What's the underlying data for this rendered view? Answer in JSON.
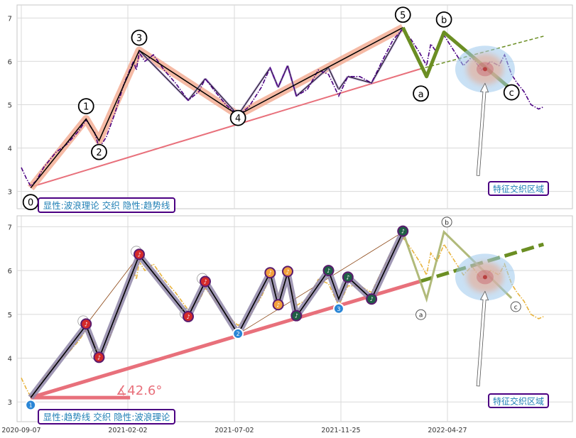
{
  "chart_data": [
    {
      "type": "line",
      "panel": "top",
      "ylim": [
        2.6,
        7.3
      ],
      "y_ticks": [
        "3",
        "4",
        "5",
        "6",
        "7"
      ],
      "x_ticks": [
        "2020-09-07",
        "2021-02-02",
        "2021-07-02",
        "2021-11-25",
        "2022-04-27"
      ],
      "grid": true,
      "price_series": {
        "color": "#4b0082",
        "style": "dash-dot",
        "points": [
          [
            "2020-09-07",
            3.55
          ],
          [
            "2020-09-14",
            3.3
          ],
          [
            "2020-09-20",
            3.12
          ],
          [
            "2020-09-28",
            3.25
          ],
          [
            "2020-10-08",
            3.55
          ],
          [
            "2020-10-25",
            3.9
          ],
          [
            "2020-11-10",
            4.1
          ],
          [
            "2020-11-26",
            4.4
          ],
          [
            "2020-12-06",
            4.65
          ],
          [
            "2020-12-18",
            4.35
          ],
          [
            "2020-12-24",
            4.0
          ],
          [
            "2021-01-03",
            4.25
          ],
          [
            "2021-01-15",
            4.8
          ],
          [
            "2021-01-28",
            5.5
          ],
          [
            "2021-02-10",
            6.0
          ],
          [
            "2021-02-14",
            5.8
          ],
          [
            "2021-02-18",
            6.2
          ],
          [
            "2021-02-26",
            6.0
          ],
          [
            "2021-03-10",
            6.15
          ],
          [
            "2021-03-25",
            5.8
          ],
          [
            "2021-04-10",
            5.5
          ],
          [
            "2021-04-28",
            5.1
          ],
          [
            "2021-05-13",
            5.3
          ],
          [
            "2021-05-22",
            5.6
          ],
          [
            "2021-06-05",
            5.3
          ],
          [
            "2021-06-20",
            5.0
          ],
          [
            "2021-07-07",
            4.75
          ],
          [
            "2021-07-22",
            4.95
          ],
          [
            "2021-08-08",
            5.4
          ],
          [
            "2021-08-20",
            5.85
          ],
          [
            "2021-08-31",
            5.4
          ],
          [
            "2021-09-13",
            5.9
          ],
          [
            "2021-09-25",
            5.2
          ],
          [
            "2021-10-10",
            5.35
          ],
          [
            "2021-10-25",
            5.8
          ],
          [
            "2021-11-08",
            5.7
          ],
          [
            "2021-11-22",
            5.2
          ],
          [
            "2021-12-05",
            5.65
          ],
          [
            "2021-12-22",
            5.65
          ],
          [
            "2022-01-08",
            5.5
          ],
          [
            "2022-01-23",
            6.0
          ],
          [
            "2022-02-08",
            6.5
          ],
          [
            "2022-02-22",
            6.75
          ],
          [
            "2022-03-06",
            6.5
          ],
          [
            "2022-03-18",
            6.2
          ],
          [
            "2022-03-28",
            5.9
          ],
          [
            "2022-04-03",
            6.4
          ],
          [
            "2022-04-12",
            6.2
          ],
          [
            "2022-04-22",
            6.6
          ],
          [
            "2022-05-08",
            6.2
          ],
          [
            "2022-05-20",
            5.9
          ],
          [
            "2022-06-01",
            6.1
          ],
          [
            "2022-06-15",
            5.8
          ],
          [
            "2022-06-28",
            6.0
          ],
          [
            "2022-07-10",
            5.9
          ],
          [
            "2022-07-18",
            6.15
          ],
          [
            "2022-07-28",
            5.7
          ],
          [
            "2022-08-05",
            5.5
          ],
          [
            "2022-08-15",
            5.3
          ],
          [
            "2022-08-25",
            5.0
          ],
          [
            "2022-09-05",
            4.9
          ],
          [
            "2022-09-12",
            4.95
          ]
        ]
      },
      "wave_points": [
        {
          "label": "0",
          "x": "2020-09-20",
          "y": 3.08
        },
        {
          "label": "1",
          "x": "2020-12-06",
          "y": 4.67
        },
        {
          "label": "2",
          "x": "2020-12-24",
          "y": 4.17
        },
        {
          "label": "3",
          "x": "2021-02-18",
          "y": 6.25
        },
        {
          "label": "4",
          "x": "2021-07-07",
          "y": 4.76
        },
        {
          "label": "5",
          "x": "2022-02-22",
          "y": 6.78
        }
      ],
      "zigzag_lines": [
        {
          "from": "2021-02-18",
          "to": "2021-04-28",
          "y1": 6.25,
          "y2": 5.1
        },
        {
          "from": "2021-04-28",
          "to": "2021-05-22",
          "y1": 5.1,
          "y2": 5.6
        },
        {
          "from": "2021-05-22",
          "to": "2021-07-07",
          "y1": 5.6,
          "y2": 4.76
        },
        {
          "from": "2021-07-07",
          "to": "2021-08-20",
          "y1": 4.76,
          "y2": 5.85
        },
        {
          "from": "2021-08-20",
          "to": "2021-08-31",
          "y1": 5.85,
          "y2": 5.4
        },
        {
          "from": "2021-08-31",
          "to": "2021-09-13",
          "y1": 5.4,
          "y2": 5.9
        },
        {
          "from": "2021-09-13",
          "to": "2021-09-25",
          "y1": 5.9,
          "y2": 5.2
        },
        {
          "from": "2021-09-25",
          "to": "2021-11-08",
          "y1": 5.2,
          "y2": 5.85
        },
        {
          "from": "2021-11-08",
          "to": "2021-11-22",
          "y1": 5.85,
          "y2": 5.35
        },
        {
          "from": "2021-11-22",
          "to": "2021-12-05",
          "y1": 5.35,
          "y2": 5.65
        },
        {
          "from": "2021-12-05",
          "to": "2022-01-08",
          "y1": 5.65,
          "y2": 5.5
        },
        {
          "from": "2022-01-08",
          "to": "2022-02-22",
          "y1": 5.5,
          "y2": 6.78
        }
      ],
      "abc_points": [
        {
          "label": "a",
          "x": "2022-03-28",
          "y": 5.65
        },
        {
          "label": "b",
          "x": "2022-04-22",
          "y": 6.67
        },
        {
          "label": "c",
          "x": "2022-07-28",
          "y": 5.35
        }
      ],
      "trendline": {
        "x1": "2020-09-20",
        "y1": 3.1,
        "x2": "2022-03-18",
        "y2": 5.82,
        "color": "#e8707b"
      },
      "projection": {
        "x1": "2022-03-18",
        "y1": 5.82,
        "x2": "2022-09-12",
        "y2": 6.58,
        "color": "#6b8e23"
      },
      "intersection_zone": {
        "x": "2022-06-20",
        "y": 5.82
      },
      "zone_annotation": {
        "text": "特征交织区域",
        "arrow_start": {
          "x": "2022-06-10",
          "y": 3.3
        }
      },
      "info_box": "显性:波浪理论 交织 隐性:趋势线"
    },
    {
      "type": "line",
      "panel": "bottom",
      "ylim": [
        2.55,
        7.25
      ],
      "y_ticks": [
        "3",
        "4",
        "5",
        "6",
        "7"
      ],
      "x_ticks": [
        "2020-09-07",
        "2021-02-02",
        "2021-07-02",
        "2021-11-25",
        "2022-04-27"
      ],
      "grid": true,
      "price_series": {
        "color": "#e8b33c",
        "style": "dash-dot",
        "same_as_top": true
      },
      "main_path": [
        {
          "x": "2020-09-20",
          "y": 3.1
        },
        {
          "x": "2020-12-06",
          "y": 4.75
        },
        {
          "x": "2020-12-24",
          "y": 4.0
        },
        {
          "x": "2021-02-18",
          "y": 6.35
        },
        {
          "x": "2021-04-28",
          "y": 4.95
        },
        {
          "x": "2021-05-22",
          "y": 5.75
        },
        {
          "x": "2021-07-07",
          "y": 4.55
        },
        {
          "x": "2021-08-20",
          "y": 5.95
        },
        {
          "x": "2021-08-31",
          "y": 5.2
        },
        {
          "x": "2021-09-13",
          "y": 5.95
        },
        {
          "x": "2021-09-25",
          "y": 4.95
        },
        {
          "x": "2021-11-08",
          "y": 6.0
        },
        {
          "x": "2021-11-22",
          "y": 5.35
        },
        {
          "x": "2021-12-05",
          "y": 5.85
        },
        {
          "x": "2022-01-08",
          "y": 5.35
        },
        {
          "x": "2022-02-22",
          "y": 6.88
        }
      ],
      "markers": [
        {
          "x": "2020-09-20",
          "y": 2.93,
          "kind": "blue",
          "label": "1"
        },
        {
          "x": "2020-12-06",
          "y": 4.78,
          "kind": "red",
          "label": "♪"
        },
        {
          "x": "2020-12-24",
          "y": 4.02,
          "kind": "red",
          "label": "♪"
        },
        {
          "x": "2021-02-18",
          "y": 6.37,
          "kind": "red",
          "label": "♪"
        },
        {
          "x": "2021-04-28",
          "y": 4.95,
          "kind": "red",
          "label": "♪"
        },
        {
          "x": "2021-05-22",
          "y": 5.75,
          "kind": "red",
          "label": "♪"
        },
        {
          "x": "2021-07-07",
          "y": 4.56,
          "kind": "blue",
          "label": "2"
        },
        {
          "x": "2021-08-20",
          "y": 5.95,
          "kind": "orange",
          "label": "♪"
        },
        {
          "x": "2021-08-31",
          "y": 5.22,
          "kind": "orange",
          "label": "♪"
        },
        {
          "x": "2021-09-13",
          "y": 5.98,
          "kind": "orange",
          "label": "♪"
        },
        {
          "x": "2021-09-25",
          "y": 4.97,
          "kind": "green",
          "label": "♪"
        },
        {
          "x": "2021-11-08",
          "y": 6.0,
          "kind": "green",
          "label": "♪"
        },
        {
          "x": "2021-11-22",
          "y": 5.13,
          "kind": "blue",
          "label": "3"
        },
        {
          "x": "2021-12-05",
          "y": 5.85,
          "kind": "green",
          "label": "♪"
        },
        {
          "x": "2022-01-08",
          "y": 5.35,
          "kind": "green",
          "label": "♪"
        },
        {
          "x": "2022-02-22",
          "y": 6.9,
          "kind": "green",
          "label": "♪"
        }
      ],
      "abc_points": [
        {
          "label": "a",
          "x": "2022-03-28",
          "y": 5.35
        },
        {
          "label": "b",
          "x": "2022-04-22",
          "y": 6.88
        },
        {
          "label": "c",
          "x": "2022-07-28",
          "y": 5.37
        }
      ],
      "trendline": {
        "x1": "2020-09-20",
        "y1": 3.1,
        "x2": "2022-03-18",
        "y2": 5.75,
        "color": "#e8707b"
      },
      "projection": {
        "x1": "2022-03-18",
        "y1": 5.75,
        "x2": "2022-09-12",
        "y2": 6.6,
        "color": "#6b8e23"
      },
      "angle_label": "∡42.6°",
      "intersection_zone": {
        "x": "2022-06-20",
        "y": 5.85
      },
      "zone_annotation": {
        "text": "特征交织区域",
        "arrow_start": {
          "x": "2022-06-10",
          "y": 3.3
        }
      },
      "info_box": "显性:趋势线 交织 隐性:波浪理论"
    }
  ]
}
